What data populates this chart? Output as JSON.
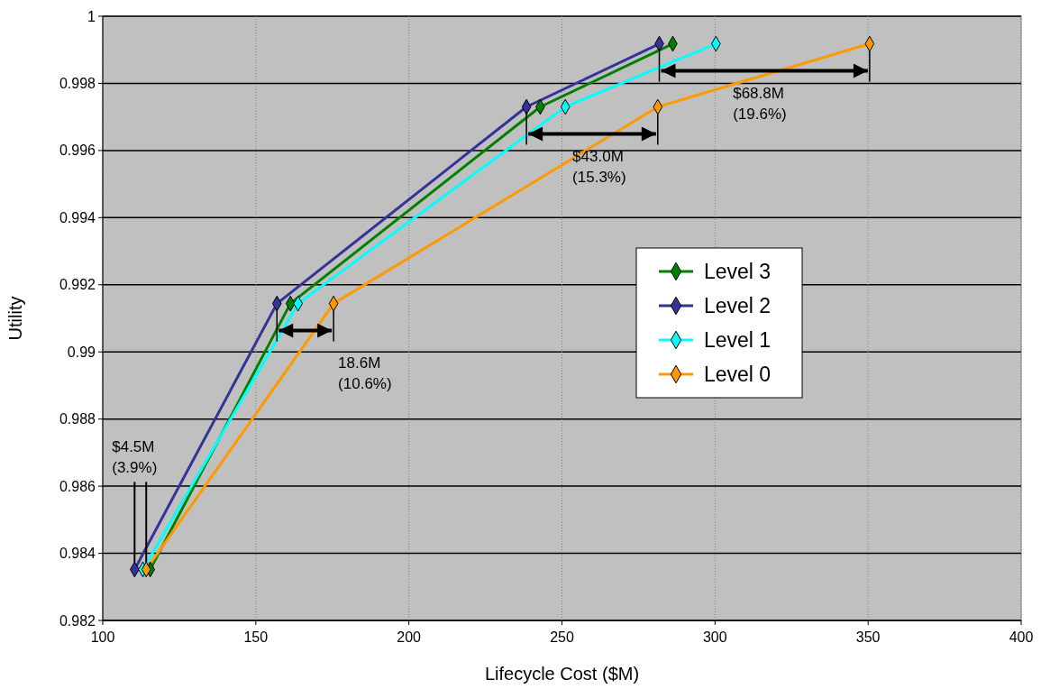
{
  "chart_data": {
    "type": "line",
    "xlabel": "Lifecycle Cost ($M)",
    "ylabel": "Utility",
    "xlim": [
      100,
      400
    ],
    "xticks": [
      100,
      150,
      200,
      250,
      300,
      350,
      400
    ],
    "ylim": [
      0.982,
      1
    ],
    "yticks": [
      0.982,
      0.984,
      0.986,
      0.988,
      0.99,
      0.992,
      0.994,
      0.996,
      0.998,
      1
    ],
    "grid": true,
    "legend": "right",
    "marker": "diamond",
    "line_style": "solid",
    "series": [
      {
        "name": "Level 3",
        "color": "#008000",
        "x": [
          115.5,
          161.3,
          242.9,
          286.2
        ],
        "values": [
          0.98352,
          0.99144,
          0.9973,
          0.99918
        ]
      },
      {
        "name": "Level 2",
        "color": "#333399",
        "x": [
          110.4,
          156.9,
          238.4,
          281.8
        ],
        "values": [
          0.98352,
          0.99144,
          0.9973,
          0.99918
        ]
      },
      {
        "name": "Level 1",
        "color": "#00ffff",
        "x": [
          113.1,
          163.8,
          251.1,
          300.3
        ],
        "values": [
          0.98352,
          0.99144,
          0.9973,
          0.99918
        ]
      },
      {
        "name": "Level 0",
        "color": "#ff9900",
        "x": [
          114.2,
          175.4,
          281.3,
          350.5
        ],
        "values": [
          0.98352,
          0.99144,
          0.9973,
          0.99918
        ]
      }
    ],
    "annotations": [
      {
        "text": "$4.5M\n(3.9%)",
        "x": 114.2,
        "y": 0.98352
      },
      {
        "text": "18.6M\n(10.6%)",
        "x": 175.4,
        "y": 0.99144
      },
      "$43.0M\n(15.3%)",
      "$68.8M\n(19.6%)"
    ]
  }
}
